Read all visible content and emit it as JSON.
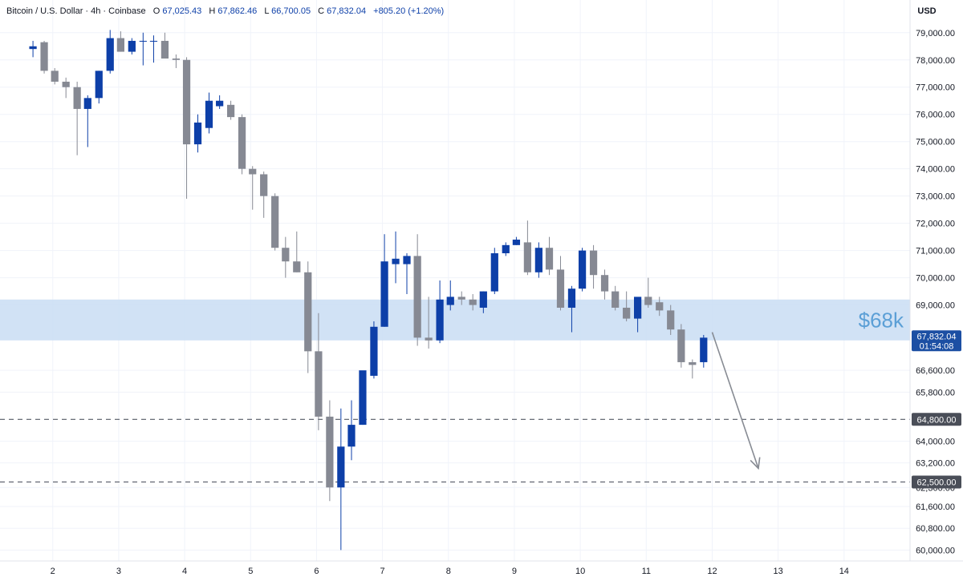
{
  "header": {
    "symbol_text": "Bitcoin / U.S. Dollar · 4h · Coinbase",
    "open_label": "O",
    "open_value": "67,025.43",
    "high_label": "H",
    "high_value": "67,862.46",
    "low_label": "L",
    "low_value": "66,700.05",
    "close_label": "C",
    "close_value": "67,832.04",
    "change_text": "+805.20 (+1.20%)"
  },
  "currency_label": "USD",
  "colors": {
    "up": "#0d3fa8",
    "down": "#868993",
    "zone_fill": "#c9ddf3",
    "zone_label": "#5b9fd6",
    "price_tag": "#1c4fa3",
    "level_tag": "#4a4e58",
    "arrow": "#878b93",
    "grid": "#f0f3fa"
  },
  "chart_data": {
    "type": "candlestick",
    "timeframe": "4h",
    "y_axis": {
      "range": [
        59600,
        80200
      ],
      "ticks": [
        "60,000.00",
        "60,800.00",
        "61,600.00",
        "62,300.00",
        "63,200.00",
        "64,000.00",
        "65,800.00",
        "66,600.00",
        "69,000.00",
        "70,000.00",
        "71,000.00",
        "72,000.00",
        "73,000.00",
        "74,000.00",
        "75,000.00",
        "76,000.00",
        "77,000.00",
        "78,000.00",
        "79,000.00"
      ],
      "tick_values": [
        60000,
        60800,
        61600,
        62300,
        63200,
        64000,
        65800,
        66600,
        69000,
        70000,
        71000,
        72000,
        73000,
        74000,
        75000,
        76000,
        77000,
        78000,
        79000
      ]
    },
    "x_axis": {
      "labels": [
        "2",
        "3",
        "4",
        "5",
        "6",
        "7",
        "8",
        "9",
        "10",
        "11",
        "12",
        "13",
        "14"
      ],
      "label_positions": [
        2,
        3,
        4,
        5,
        6,
        7,
        8,
        9,
        10,
        11,
        12,
        13,
        14
      ]
    },
    "candles": [
      {
        "t": 1.7,
        "o": 78400,
        "h": 78700,
        "l": 78100,
        "c": 78500
      },
      {
        "t": 1.87,
        "o": 78650,
        "h": 78700,
        "l": 77500,
        "c": 77600
      },
      {
        "t": 2.03,
        "o": 77600,
        "h": 77700,
        "l": 77100,
        "c": 77200
      },
      {
        "t": 2.2,
        "o": 77200,
        "h": 77350,
        "l": 76600,
        "c": 77000
      },
      {
        "t": 2.37,
        "o": 77000,
        "h": 77200,
        "l": 74500,
        "c": 76200
      },
      {
        "t": 2.53,
        "o": 76200,
        "h": 76700,
        "l": 74800,
        "c": 76600
      },
      {
        "t": 2.7,
        "o": 76600,
        "h": 77600,
        "l": 76400,
        "c": 77600
      },
      {
        "t": 2.87,
        "o": 77600,
        "h": 79100,
        "l": 77500,
        "c": 78800
      },
      {
        "t": 3.03,
        "o": 78800,
        "h": 79050,
        "l": 78300,
        "c": 78300
      },
      {
        "t": 3.2,
        "o": 78300,
        "h": 78800,
        "l": 78200,
        "c": 78700
      },
      {
        "t": 3.37,
        "o": 78700,
        "h": 79000,
        "l": 77800,
        "c": 78700
      },
      {
        "t": 3.53,
        "o": 78700,
        "h": 78900,
        "l": 77900,
        "c": 78700
      },
      {
        "t": 3.7,
        "o": 78700,
        "h": 79000,
        "l": 78200,
        "c": 78050
      },
      {
        "t": 3.87,
        "o": 78050,
        "h": 78200,
        "l": 77700,
        "c": 78000
      },
      {
        "t": 4.03,
        "o": 78000,
        "h": 78100,
        "l": 72900,
        "c": 74900
      },
      {
        "t": 4.2,
        "o": 74900,
        "h": 76000,
        "l": 74600,
        "c": 75700
      },
      {
        "t": 4.37,
        "o": 75500,
        "h": 76800,
        "l": 75300,
        "c": 76500
      },
      {
        "t": 4.53,
        "o": 76300,
        "h": 76700,
        "l": 76200,
        "c": 76500
      },
      {
        "t": 4.7,
        "o": 76350,
        "h": 76500,
        "l": 75800,
        "c": 75900
      },
      {
        "t": 4.87,
        "o": 75900,
        "h": 76000,
        "l": 73800,
        "c": 74000
      },
      {
        "t": 5.03,
        "o": 74000,
        "h": 74100,
        "l": 72500,
        "c": 73800
      },
      {
        "t": 5.2,
        "o": 73800,
        "h": 73900,
        "l": 72200,
        "c": 73000
      },
      {
        "t": 5.37,
        "o": 73000,
        "h": 73100,
        "l": 71000,
        "c": 71100
      },
      {
        "t": 5.53,
        "o": 71100,
        "h": 71500,
        "l": 70000,
        "c": 70600
      },
      {
        "t": 5.7,
        "o": 70600,
        "h": 71700,
        "l": 70200,
        "c": 70200
      },
      {
        "t": 5.87,
        "o": 70200,
        "h": 70600,
        "l": 66500,
        "c": 67300
      },
      {
        "t": 6.03,
        "o": 67300,
        "h": 68700,
        "l": 64400,
        "c": 64900
      },
      {
        "t": 6.2,
        "o": 64900,
        "h": 65500,
        "l": 61800,
        "c": 62300
      },
      {
        "t": 6.37,
        "o": 62300,
        "h": 65200,
        "l": 60000,
        "c": 63800
      },
      {
        "t": 6.53,
        "o": 63800,
        "h": 65500,
        "l": 63300,
        "c": 64600
      },
      {
        "t": 6.7,
        "o": 64600,
        "h": 66500,
        "l": 64600,
        "c": 66600
      },
      {
        "t": 6.87,
        "o": 66400,
        "h": 68400,
        "l": 66300,
        "c": 68200
      },
      {
        "t": 7.03,
        "o": 68200,
        "h": 71600,
        "l": 68200,
        "c": 70600
      },
      {
        "t": 7.2,
        "o": 70500,
        "h": 71700,
        "l": 69800,
        "c": 70700
      },
      {
        "t": 7.37,
        "o": 70500,
        "h": 70900,
        "l": 69400,
        "c": 70800
      },
      {
        "t": 7.53,
        "o": 70800,
        "h": 71600,
        "l": 67500,
        "c": 67800
      },
      {
        "t": 7.7,
        "o": 67800,
        "h": 69300,
        "l": 67400,
        "c": 67700
      },
      {
        "t": 7.87,
        "o": 67700,
        "h": 69900,
        "l": 67600,
        "c": 69200
      },
      {
        "t": 8.03,
        "o": 69000,
        "h": 69900,
        "l": 68800,
        "c": 69300
      },
      {
        "t": 8.2,
        "o": 69300,
        "h": 69500,
        "l": 69000,
        "c": 69200
      },
      {
        "t": 8.37,
        "o": 69200,
        "h": 69400,
        "l": 68800,
        "c": 69000
      },
      {
        "t": 8.53,
        "o": 68900,
        "h": 69500,
        "l": 68700,
        "c": 69500
      },
      {
        "t": 8.7,
        "o": 69500,
        "h": 71100,
        "l": 69400,
        "c": 70900
      },
      {
        "t": 8.87,
        "o": 70900,
        "h": 71300,
        "l": 70800,
        "c": 71200
      },
      {
        "t": 9.03,
        "o": 71200,
        "h": 71500,
        "l": 71200,
        "c": 71400
      },
      {
        "t": 9.2,
        "o": 71300,
        "h": 72100,
        "l": 70100,
        "c": 70200
      },
      {
        "t": 9.37,
        "o": 70200,
        "h": 71300,
        "l": 70000,
        "c": 71100
      },
      {
        "t": 9.53,
        "o": 71100,
        "h": 71500,
        "l": 70100,
        "c": 70300
      },
      {
        "t": 9.7,
        "o": 70300,
        "h": 70800,
        "l": 68800,
        "c": 68900
      },
      {
        "t": 9.87,
        "o": 68900,
        "h": 69700,
        "l": 68000,
        "c": 69600
      },
      {
        "t": 10.03,
        "o": 69600,
        "h": 71100,
        "l": 69500,
        "c": 71000
      },
      {
        "t": 10.2,
        "o": 71000,
        "h": 71200,
        "l": 69600,
        "c": 70100
      },
      {
        "t": 10.37,
        "o": 70100,
        "h": 70300,
        "l": 69200,
        "c": 69500
      },
      {
        "t": 10.53,
        "o": 69500,
        "h": 69700,
        "l": 68800,
        "c": 68900
      },
      {
        "t": 10.7,
        "o": 68900,
        "h": 69500,
        "l": 68400,
        "c": 68500
      },
      {
        "t": 10.87,
        "o": 68500,
        "h": 69200,
        "l": 68000,
        "c": 69300
      },
      {
        "t": 11.03,
        "o": 69300,
        "h": 70000,
        "l": 68900,
        "c": 69000
      },
      {
        "t": 11.2,
        "o": 69100,
        "h": 69300,
        "l": 68600,
        "c": 68800
      },
      {
        "t": 11.37,
        "o": 68800,
        "h": 69000,
        "l": 67900,
        "c": 68100
      },
      {
        "t": 11.53,
        "o": 68100,
        "h": 68300,
        "l": 66700,
        "c": 66900
      },
      {
        "t": 11.7,
        "o": 66900,
        "h": 67000,
        "l": 66300,
        "c": 66800
      },
      {
        "t": 11.87,
        "o": 66900,
        "h": 67900,
        "l": 66700,
        "c": 67800
      }
    ],
    "x_range": [
      1.2,
      15.0
    ],
    "zone": {
      "low": 67700,
      "high": 69200,
      "label": "$68k"
    },
    "levels": [
      {
        "value": 64800,
        "label": "64,800.00"
      },
      {
        "value": 62500,
        "label": "62,500.00"
      }
    ],
    "current_price": {
      "value": 67832.04,
      "label": "67,832.04",
      "countdown": "01:54:08"
    },
    "arrow": {
      "from": {
        "t": 12.0,
        "v": 68000
      },
      "to": {
        "t": 12.7,
        "v": 63000
      }
    }
  }
}
